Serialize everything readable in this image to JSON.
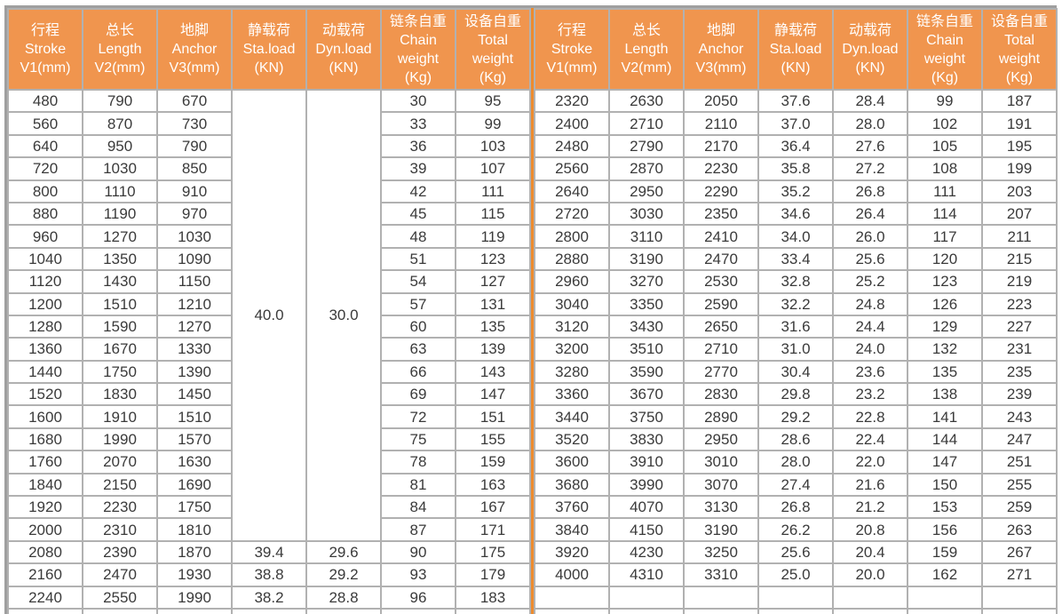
{
  "table": {
    "column_keys": [
      "stroke-v1",
      "length-v2",
      "anchor-v3",
      "sta-load",
      "dyn-load",
      "chain-weight",
      "total-weight"
    ],
    "header_columns": [
      {
        "lines": [
          "行程",
          "Stroke",
          "V1(mm)"
        ]
      },
      {
        "lines": [
          "总长",
          "Length",
          "V2(mm)"
        ]
      },
      {
        "lines": [
          "地脚",
          "Anchor",
          "V3(mm)"
        ]
      },
      {
        "lines": [
          "静载荷",
          "Sta.load",
          "(KN)"
        ]
      },
      {
        "lines": [
          "动载荷",
          "Dyn.load",
          "(KN)"
        ]
      },
      {
        "lines": [
          "链条自重",
          "Chain",
          "weight",
          "(Kg)"
        ]
      },
      {
        "lines": [
          "设备自重",
          "Total",
          "weight",
          "(Kg)"
        ]
      }
    ],
    "left": {
      "merged": {
        "sta_load": "40.0",
        "dyn_load": "30.0",
        "row_span": 20
      },
      "rows": [
        [
          "480",
          "790",
          "670",
          null,
          null,
          "30",
          "95"
        ],
        [
          "560",
          "870",
          "730",
          null,
          null,
          "33",
          "99"
        ],
        [
          "640",
          "950",
          "790",
          null,
          null,
          "36",
          "103"
        ],
        [
          "720",
          "1030",
          "850",
          null,
          null,
          "39",
          "107"
        ],
        [
          "800",
          "1110",
          "910",
          null,
          null,
          "42",
          "111"
        ],
        [
          "880",
          "1190",
          "970",
          null,
          null,
          "45",
          "115"
        ],
        [
          "960",
          "1270",
          "1030",
          null,
          null,
          "48",
          "119"
        ],
        [
          "1040",
          "1350",
          "1090",
          null,
          null,
          "51",
          "123"
        ],
        [
          "1120",
          "1430",
          "1150",
          null,
          null,
          "54",
          "127"
        ],
        [
          "1200",
          "1510",
          "1210",
          null,
          null,
          "57",
          "131"
        ],
        [
          "1280",
          "1590",
          "1270",
          null,
          null,
          "60",
          "135"
        ],
        [
          "1360",
          "1670",
          "1330",
          null,
          null,
          "63",
          "139"
        ],
        [
          "1440",
          "1750",
          "1390",
          null,
          null,
          "66",
          "143"
        ],
        [
          "1520",
          "1830",
          "1450",
          null,
          null,
          "69",
          "147"
        ],
        [
          "1600",
          "1910",
          "1510",
          null,
          null,
          "72",
          "151"
        ],
        [
          "1680",
          "1990",
          "1570",
          null,
          null,
          "75",
          "155"
        ],
        [
          "1760",
          "2070",
          "1630",
          null,
          null,
          "78",
          "159"
        ],
        [
          "1840",
          "2150",
          "1690",
          null,
          null,
          "81",
          "163"
        ],
        [
          "1920",
          "2230",
          "1750",
          null,
          null,
          "84",
          "167"
        ],
        [
          "2000",
          "2310",
          "1810",
          null,
          null,
          "87",
          "171"
        ],
        [
          "2080",
          "2390",
          "1870",
          "39.4",
          "29.6",
          "90",
          "175"
        ],
        [
          "2160",
          "2470",
          "1930",
          "38.8",
          "29.2",
          "93",
          "179"
        ],
        [
          "2240",
          "2550",
          "1990",
          "38.2",
          "28.8",
          "96",
          "183"
        ]
      ]
    },
    "right": {
      "rows": [
        [
          "2320",
          "2630",
          "2050",
          "37.6",
          "28.4",
          "99",
          "187"
        ],
        [
          "2400",
          "2710",
          "2110",
          "37.0",
          "28.0",
          "102",
          "191"
        ],
        [
          "2480",
          "2790",
          "2170",
          "36.4",
          "27.6",
          "105",
          "195"
        ],
        [
          "2560",
          "2870",
          "2230",
          "35.8",
          "27.2",
          "108",
          "199"
        ],
        [
          "2640",
          "2950",
          "2290",
          "35.2",
          "26.8",
          "111",
          "203"
        ],
        [
          "2720",
          "3030",
          "2350",
          "34.6",
          "26.4",
          "114",
          "207"
        ],
        [
          "2800",
          "3110",
          "2410",
          "34.0",
          "26.0",
          "117",
          "211"
        ],
        [
          "2880",
          "3190",
          "2470",
          "33.4",
          "25.6",
          "120",
          "215"
        ],
        [
          "2960",
          "3270",
          "2530",
          "32.8",
          "25.2",
          "123",
          "219"
        ],
        [
          "3040",
          "3350",
          "2590",
          "32.2",
          "24.8",
          "126",
          "223"
        ],
        [
          "3120",
          "3430",
          "2650",
          "31.6",
          "24.4",
          "129",
          "227"
        ],
        [
          "3200",
          "3510",
          "2710",
          "31.0",
          "24.0",
          "132",
          "231"
        ],
        [
          "3280",
          "3590",
          "2770",
          "30.4",
          "23.6",
          "135",
          "235"
        ],
        [
          "3360",
          "3670",
          "2830",
          "29.8",
          "23.2",
          "138",
          "239"
        ],
        [
          "3440",
          "3750",
          "2890",
          "29.2",
          "22.8",
          "141",
          "243"
        ],
        [
          "3520",
          "3830",
          "2950",
          "28.6",
          "22.4",
          "144",
          "247"
        ],
        [
          "3600",
          "3910",
          "3010",
          "28.0",
          "22.0",
          "147",
          "251"
        ],
        [
          "3680",
          "3990",
          "3070",
          "27.4",
          "21.6",
          "150",
          "255"
        ],
        [
          "3760",
          "4070",
          "3130",
          "26.8",
          "21.2",
          "153",
          "259"
        ],
        [
          "3840",
          "4150",
          "3190",
          "26.2",
          "20.8",
          "156",
          "263"
        ],
        [
          "3920",
          "4230",
          "3250",
          "25.6",
          "20.4",
          "159",
          "267"
        ],
        [
          "4000",
          "4310",
          "3310",
          "25.0",
          "20.0",
          "162",
          "271"
        ],
        [
          "",
          "",
          "",
          "",
          "",
          "",
          ""
        ]
      ]
    },
    "colors": {
      "header_bg": "#f0954e",
      "header_text": "#ffffff",
      "body_text": "#3a3a3a",
      "grid_line": "#b1b1b1",
      "outer_border": "#9f9f9f",
      "divider": "#ed8b2e"
    }
  }
}
